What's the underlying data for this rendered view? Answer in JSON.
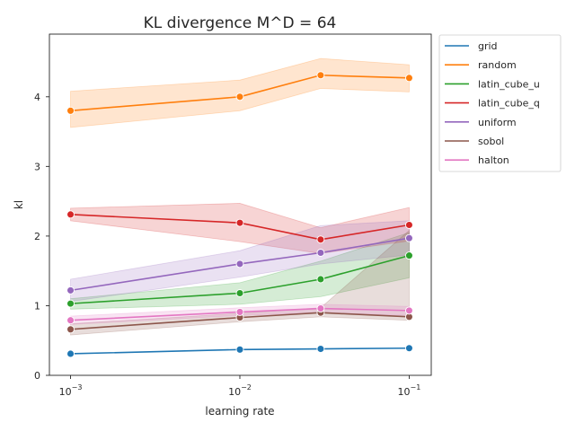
{
  "chart_data": {
    "type": "line",
    "title": "KL divergence M^D = 64",
    "xlabel": "learning rate",
    "ylabel": "kl",
    "x_scale": "log",
    "x": [
      0.001,
      0.01,
      0.03,
      0.1
    ],
    "x_ticks": [
      {
        "value": 0.001,
        "base": "10",
        "exp": "−3"
      },
      {
        "value": 0.01,
        "base": "10",
        "exp": "−2"
      },
      {
        "value": 0.1,
        "base": "10",
        "exp": "−1"
      }
    ],
    "xlim": [
      0.00075,
      0.135
    ],
    "ylim": [
      0,
      4.9
    ],
    "y_ticks": [
      0,
      1,
      2,
      3,
      4
    ],
    "grid": false,
    "legend_position": "outside-top-right",
    "series": [
      {
        "name": "grid",
        "color": "#1f77b4",
        "values": [
          0.31,
          0.37,
          0.38,
          0.39
        ],
        "lower": [
          0.31,
          0.37,
          0.38,
          0.39
        ],
        "upper": [
          0.31,
          0.37,
          0.38,
          0.39
        ]
      },
      {
        "name": "random",
        "color": "#ff7f0e",
        "values": [
          3.8,
          4.0,
          4.31,
          4.27
        ],
        "lower": [
          3.56,
          3.8,
          4.12,
          4.07
        ],
        "upper": [
          4.08,
          4.24,
          4.55,
          4.46
        ]
      },
      {
        "name": "latin_cube_u",
        "color": "#2ca02c",
        "values": [
          1.03,
          1.18,
          1.38,
          1.72
        ],
        "lower": [
          0.95,
          1.02,
          1.13,
          1.4
        ],
        "upper": [
          1.1,
          1.33,
          1.64,
          2.05
        ]
      },
      {
        "name": "latin_cube_q",
        "color": "#d62728",
        "values": [
          2.31,
          2.19,
          1.95,
          2.16
        ],
        "lower": [
          2.22,
          1.92,
          1.75,
          1.93
        ],
        "upper": [
          2.4,
          2.47,
          2.12,
          2.41
        ]
      },
      {
        "name": "uniform",
        "color": "#9467bd",
        "values": [
          1.22,
          1.6,
          1.76,
          1.97
        ],
        "lower": [
          1.06,
          1.41,
          1.6,
          1.73
        ],
        "upper": [
          1.38,
          1.79,
          2.15,
          2.22
        ]
      },
      {
        "name": "sobol",
        "color": "#8c564b",
        "values": [
          0.66,
          0.83,
          0.9,
          0.84
        ],
        "lower": [
          0.58,
          0.77,
          0.84,
          0.79
        ],
        "upper": [
          0.74,
          0.89,
          0.97,
          2.08
        ]
      },
      {
        "name": "halton",
        "color": "#e377c2",
        "values": [
          0.79,
          0.91,
          0.96,
          0.93
        ],
        "lower": [
          0.73,
          0.86,
          0.9,
          0.86
        ],
        "upper": [
          0.85,
          0.97,
          1.02,
          0.99
        ]
      }
    ]
  }
}
